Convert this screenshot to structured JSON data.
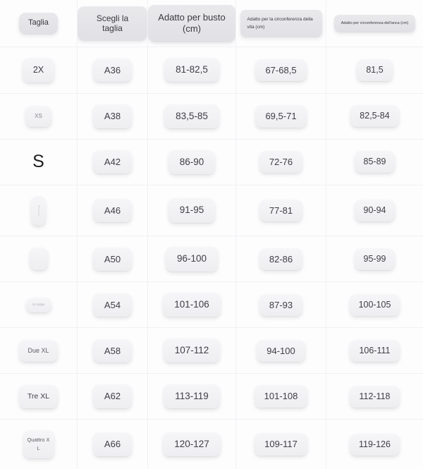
{
  "colors": {
    "page_background": "#fdfdfe",
    "grid_line": "#f1f1f4",
    "data_pill_background": "#f2f2f5",
    "header_pill_background": "#e5e5e9",
    "text": "#3e3e44"
  },
  "table": {
    "headers": [
      {
        "label": "Taglia"
      },
      {
        "label": "Scegli la taglia"
      },
      {
        "label": "Adatto per busto (cm)"
      },
      {
        "label": "Adatto per la circonferenza della vita (cm)"
      },
      {
        "label": "Adatto per circonferenza dell'anca (cm)"
      }
    ],
    "rows": [
      {
        "size": "2X",
        "code": "A36",
        "bust": "81-82,5",
        "waist": "67-68,5",
        "hip": "81,5"
      },
      {
        "size": "XS",
        "code": "A38",
        "bust": "83,5-85",
        "waist": "69,5-71",
        "hip": "82,5-84"
      },
      {
        "size": "S",
        "code": "A42",
        "bust": "86-90",
        "waist": "72-76",
        "hip": "85-89"
      },
      {
        "size": "Medio",
        "code": "A46",
        "bust": "91-95",
        "waist": "77-81",
        "hip": "90-94"
      },
      {
        "size": "",
        "code": "A50",
        "bust": "96-100",
        "waist": "82-86",
        "hip": "95-99"
      },
      {
        "size": "1x Large",
        "code": "A54",
        "bust": "101-106",
        "waist": "87-93",
        "hip": "100-105"
      },
      {
        "size": "Due XL",
        "code": "A58",
        "bust": "107-112",
        "waist": "94-100",
        "hip": "106-111"
      },
      {
        "size": "Tre XL",
        "code": "A62",
        "bust": "113-119",
        "waist": "101-108",
        "hip": "112-118"
      },
      {
        "size": "Quattro XL",
        "code": "A66",
        "bust": "120-127",
        "waist": "109-117",
        "hip": "119-126"
      }
    ]
  }
}
